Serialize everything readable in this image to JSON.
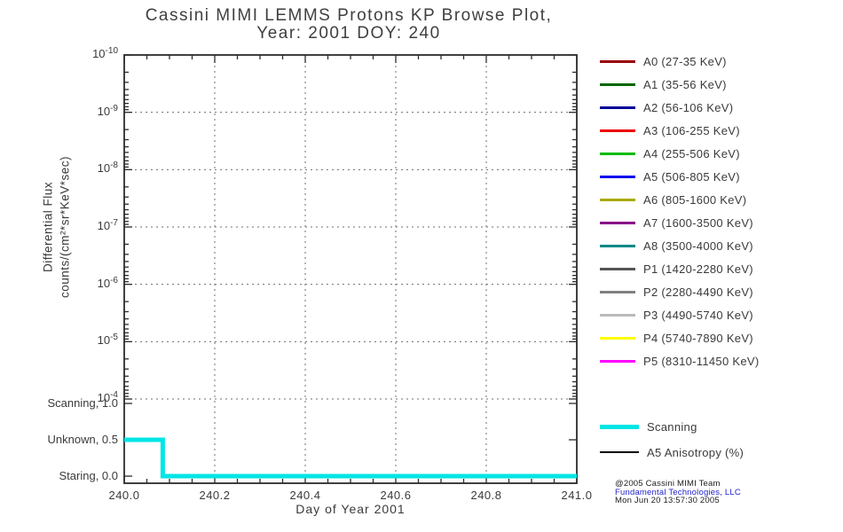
{
  "title": {
    "line1": "Cassini MIMI LEMMS Protons KP Browse Plot,",
    "line2": "Year: 2001 DOY: 240"
  },
  "chart_data": {
    "type": "line",
    "title": "Cassini MIMI LEMMS Protons KP Browse Plot, Year: 2001 DOY: 240",
    "x_axis": {
      "label": "Day of Year 2001",
      "range": [
        240.0,
        241.0
      ],
      "major_ticks": [
        {
          "label": "240.0",
          "value": 240.0
        },
        {
          "label": "240.2",
          "value": 240.2
        },
        {
          "label": "240.4",
          "value": 240.4
        },
        {
          "label": "240.6",
          "value": 240.6
        },
        {
          "label": "240.8",
          "value": 240.8
        },
        {
          "label": "241.0",
          "value": 241.0
        }
      ],
      "minor_tick_step": 0.05,
      "grid": "dashed vertical lines at interior major ticks"
    },
    "flux_axis": {
      "label_line1": "Differential Flux",
      "label_line2": "counts/(cm²*sr*KeV*sec)",
      "scale": "log",
      "tick_base": "10",
      "tick_exponents_top_to_bottom": [
        "-10",
        "-9",
        "-8",
        "-7",
        "-6",
        "-5",
        "-4"
      ],
      "range_top_to_bottom": [
        "1e-10",
        "1e-4"
      ],
      "grid": "dashed horizontal lines at each decade"
    },
    "mode_axis": {
      "ticks": [
        {
          "label": "Scanning, 1.0",
          "value": 1.0
        },
        {
          "label": "Unknown, 0.5",
          "value": 0.5
        },
        {
          "label": "Staring, 0.0",
          "value": 0.0
        }
      ]
    },
    "series": [
      {
        "name": "Scanning",
        "axis": "mode",
        "type": "step",
        "color": "#00E5E5",
        "points": [
          [
            240.0,
            0.5
          ],
          [
            240.085,
            0.5
          ],
          [
            240.085,
            0.0
          ],
          [
            241.0,
            0.0
          ]
        ]
      }
    ],
    "flux_series_visible": [],
    "legend_channels": [
      {
        "label": "A0 (27-35 KeV)",
        "color": "#990000"
      },
      {
        "label": "A1 (35-56 KeV)",
        "color": "#006600"
      },
      {
        "label": "A2 (56-106 KeV)",
        "color": "#000099"
      },
      {
        "label": "A3 (106-255 KeV)",
        "color": "#EE0000"
      },
      {
        "label": "A4 (255-506 KeV)",
        "color": "#00BB00"
      },
      {
        "label": "A5 (506-805 KeV)",
        "color": "#0000EE"
      },
      {
        "label": "A6 (805-1600 KeV)",
        "color": "#AAAA00"
      },
      {
        "label": "A7 (1600-3500 KeV)",
        "color": "#880088"
      },
      {
        "label": "A8 (3500-4000 KeV)",
        "color": "#008888"
      },
      {
        "label": "P1 (1420-2280 KeV)",
        "color": "#555555"
      },
      {
        "label": "P2 (2280-4490 KeV)",
        "color": "#808080"
      },
      {
        "label": "P3 (4490-5740 KeV)",
        "color": "#BBBBBB"
      },
      {
        "label": "P4 (5740-7890 KeV)",
        "color": "#FFFF00"
      },
      {
        "label": "P5 (8310-11450 KeV)",
        "color": "#FF00FF"
      }
    ],
    "legend_lines": [
      {
        "label": "Scanning",
        "color": "#00E5E5",
        "thickness": 5
      },
      {
        "label": "A5 Anisotropy (%)",
        "color": "#000000",
        "thickness": 2
      }
    ]
  },
  "footer": {
    "line1": "@2005 Cassini MIMI Team",
    "line2": "Fundamental Technologies, LLC",
    "line3": "Mon Jun 20 13:57:30 2005",
    "line2_color": "#2222CC"
  }
}
